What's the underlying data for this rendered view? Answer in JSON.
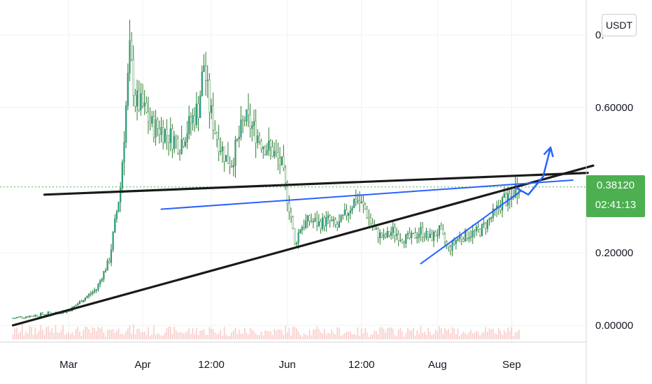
{
  "currency": "USDT",
  "last_price": "0.38120",
  "countdown": "02:41:13",
  "colors": {
    "grid": "#eef0f3",
    "up_candle": "#26a69a",
    "wick": "#2e7d32",
    "volume": "#f5b7b1",
    "trendline_black": "#1a1a1a",
    "trendline_blue": "#2962ff",
    "last_price_line": "#4caf50",
    "price_tag_bg": "#4caf50"
  },
  "chart_data": {
    "type": "candlestick",
    "y_tick_labels": [
      "0.",
      "0.60000",
      "0.20000",
      "0.00000"
    ],
    "y_ticks": [
      0.8,
      0.6,
      0.2,
      0.0
    ],
    "ylim": [
      -0.02,
      0.88
    ],
    "x_tick_labels": [
      "Mar",
      "Apr",
      "12:00",
      "Jun",
      "12:00",
      "Aug",
      "Sep"
    ],
    "grid": true,
    "close_series": [
      [
        -30,
        0.02
      ],
      [
        0,
        0.04
      ],
      [
        15,
        0.1
      ],
      [
        22,
        0.18
      ],
      [
        28,
        0.38
      ],
      [
        33,
        0.75
      ],
      [
        36,
        0.62
      ],
      [
        40,
        0.6
      ],
      [
        45,
        0.55
      ],
      [
        50,
        0.54
      ],
      [
        55,
        0.52
      ],
      [
        60,
        0.5
      ],
      [
        65,
        0.55
      ],
      [
        70,
        0.6
      ],
      [
        73,
        0.72
      ],
      [
        76,
        0.6
      ],
      [
        80,
        0.52
      ],
      [
        85,
        0.46
      ],
      [
        88,
        0.45
      ],
      [
        95,
        0.57
      ],
      [
        100,
        0.54
      ],
      [
        105,
        0.5
      ],
      [
        110,
        0.48
      ],
      [
        115,
        0.44
      ],
      [
        117,
        0.38
      ],
      [
        120,
        0.3
      ],
      [
        122,
        0.22
      ],
      [
        125,
        0.27
      ],
      [
        130,
        0.29
      ],
      [
        135,
        0.28
      ],
      [
        140,
        0.29
      ],
      [
        145,
        0.27
      ],
      [
        150,
        0.31
      ],
      [
        155,
        0.35
      ],
      [
        160,
        0.32
      ],
      [
        165,
        0.26
      ],
      [
        170,
        0.24
      ],
      [
        175,
        0.26
      ],
      [
        180,
        0.24
      ],
      [
        185,
        0.24
      ],
      [
        190,
        0.26
      ],
      [
        195,
        0.24
      ],
      [
        200,
        0.26
      ],
      [
        205,
        0.21
      ],
      [
        210,
        0.24
      ],
      [
        215,
        0.25
      ],
      [
        222,
        0.26
      ],
      [
        230,
        0.31
      ],
      [
        235,
        0.35
      ],
      [
        238,
        0.34
      ],
      [
        241,
        0.38
      ],
      [
        243,
        0.38
      ]
    ],
    "annotations": [
      {
        "type": "trendline",
        "color": "black",
        "from": [
          -30,
          0.0
        ],
        "to": [
          283,
          0.44
        ]
      },
      {
        "type": "trendline",
        "color": "black",
        "from": [
          -13,
          0.36
        ],
        "to": [
          280,
          0.42
        ]
      },
      {
        "type": "trendline",
        "color": "blue",
        "from": [
          50,
          0.32
        ],
        "to": [
          272,
          0.4
        ]
      },
      {
        "type": "trendline",
        "color": "blue",
        "from": [
          190,
          0.17
        ],
        "to": [
          244,
          0.37
        ]
      },
      {
        "type": "projection_arrow",
        "color": "blue",
        "path": [
          [
            241,
            0.38
          ],
          [
            248,
            0.36
          ],
          [
            256,
            0.41
          ],
          [
            260,
            0.49
          ]
        ]
      }
    ],
    "last_price": 0.3812
  }
}
